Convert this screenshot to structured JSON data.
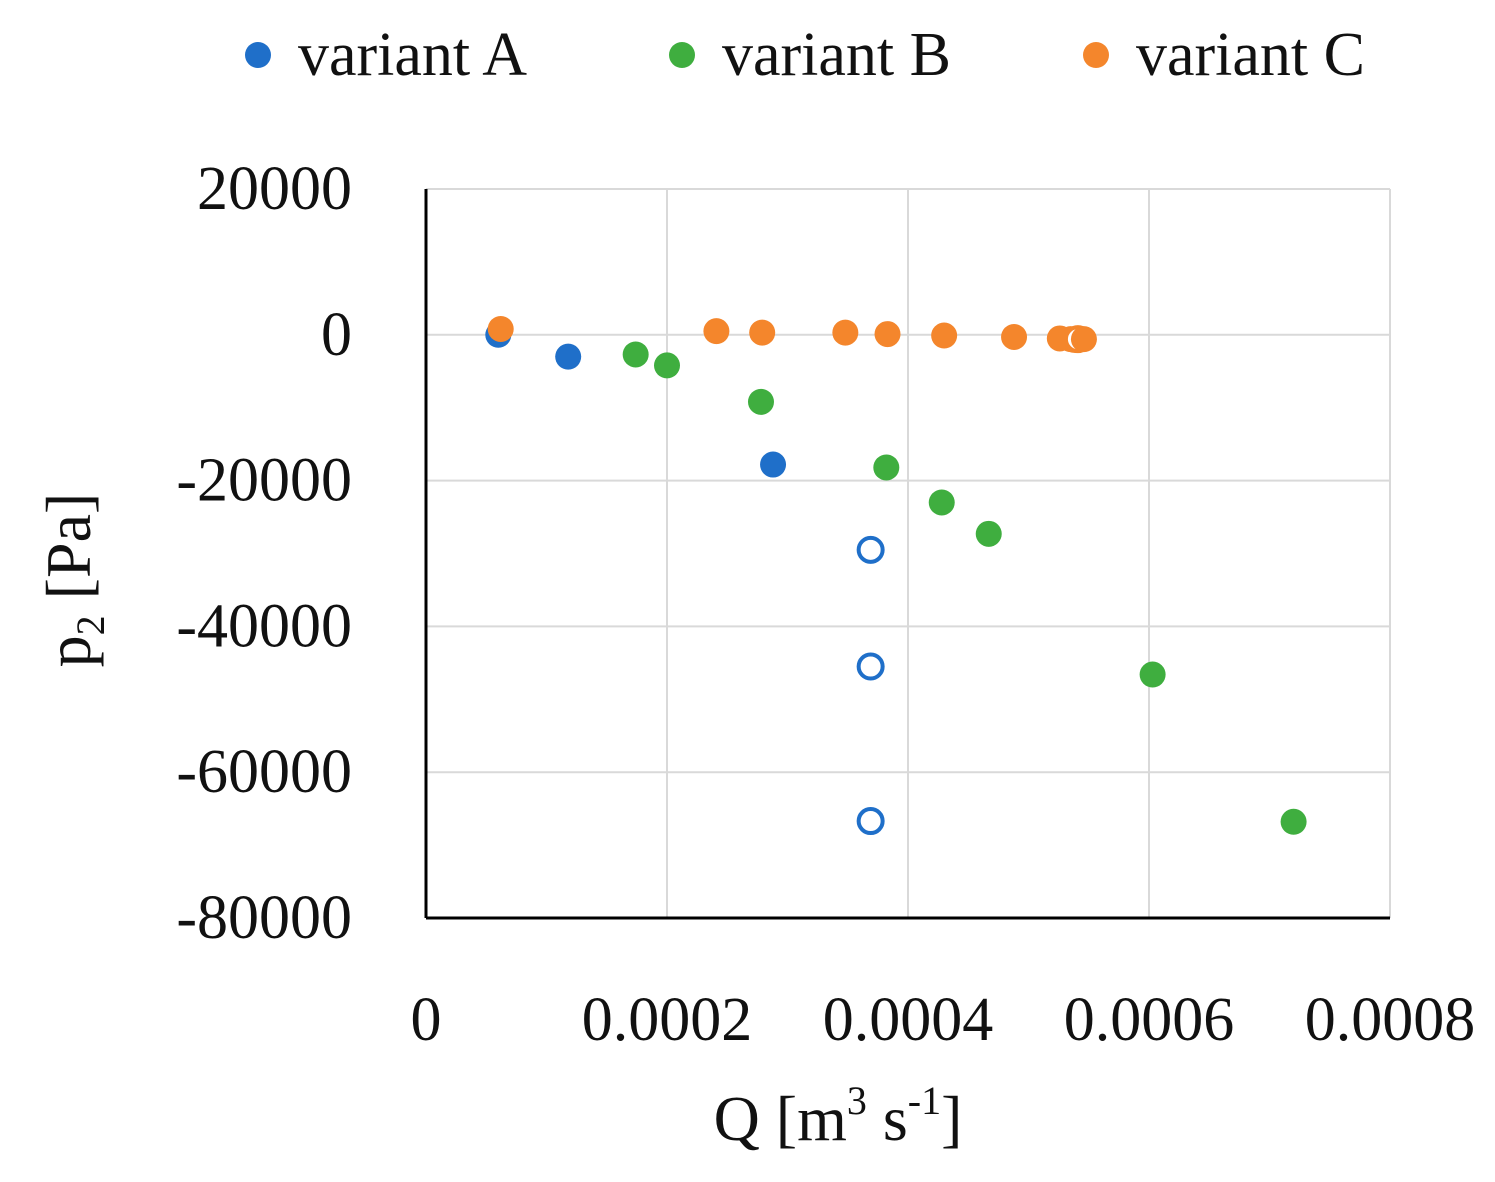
{
  "chart_data": {
    "type": "scatter",
    "title": "",
    "xlabel": "Q [m3 s-1]",
    "xlabel_parts": {
      "base": "Q [m",
      "sup1": "3",
      "mid": " s",
      "sup2": "-1",
      "end": "]"
    },
    "ylabel": "p2 [Pa]",
    "ylabel_parts": {
      "base": "p",
      "sub": "2",
      "end": " [Pa]"
    },
    "xlim": [
      0,
      0.0008
    ],
    "ylim": [
      -80000,
      20000
    ],
    "x_ticks": [
      0,
      0.0002,
      0.0004,
      0.0006,
      0.0008
    ],
    "x_tick_labels": [
      "0",
      "0.0002",
      "0.0004",
      "0.0006",
      "0.0008"
    ],
    "y_ticks": [
      20000,
      0,
      -20000,
      -40000,
      -60000,
      -80000
    ],
    "y_tick_labels": [
      "20000",
      "0",
      "-20000",
      "-40000",
      "-60000",
      "-80000"
    ],
    "grid": true,
    "legend_position": "top",
    "series": [
      {
        "name": "variant A",
        "color": "#1f6fc9",
        "points": [
          {
            "x": 6e-05,
            "y": 0,
            "filled": true
          },
          {
            "x": 0.000118,
            "y": -3000,
            "filled": true
          },
          {
            "x": 0.000288,
            "y": -17800,
            "filled": true
          },
          {
            "x": 0.000369,
            "y": -29500,
            "filled": false
          },
          {
            "x": 0.000369,
            "y": -45500,
            "filled": false
          },
          {
            "x": 0.000369,
            "y": -66700,
            "filled": false
          }
        ]
      },
      {
        "name": "variant B",
        "color": "#3fae3f",
        "points": [
          {
            "x": 0.000174,
            "y": -2700,
            "filled": true
          },
          {
            "x": 0.0002,
            "y": -4200,
            "filled": true
          },
          {
            "x": 0.000278,
            "y": -9200,
            "filled": true
          },
          {
            "x": 0.000382,
            "y": -18200,
            "filled": true
          },
          {
            "x": 0.000428,
            "y": -23000,
            "filled": true
          },
          {
            "x": 0.000467,
            "y": -27300,
            "filled": true
          },
          {
            "x": 0.000603,
            "y": -46600,
            "filled": true
          },
          {
            "x": 0.00072,
            "y": -66800,
            "filled": true
          }
        ]
      },
      {
        "name": "variant C",
        "color": "#f4862c",
        "points": [
          {
            "x": 6.2e-05,
            "y": 800,
            "filled": true
          },
          {
            "x": 0.000241,
            "y": 500,
            "filled": true
          },
          {
            "x": 0.000279,
            "y": 300,
            "filled": true
          },
          {
            "x": 0.000348,
            "y": 300,
            "filled": true
          },
          {
            "x": 0.000383,
            "y": 100,
            "filled": true
          },
          {
            "x": 0.00043,
            "y": -100,
            "filled": true
          },
          {
            "x": 0.000488,
            "y": -300,
            "filled": true
          },
          {
            "x": 0.000526,
            "y": -500,
            "filled": true
          },
          {
            "x": 0.000535,
            "y": -600,
            "filled": true
          },
          {
            "x": 0.000538,
            "y": -700,
            "filled": true
          },
          {
            "x": 0.000541,
            "y": -600,
            "filled": false
          },
          {
            "x": 0.000546,
            "y": -600,
            "filled": true
          }
        ]
      }
    ]
  }
}
